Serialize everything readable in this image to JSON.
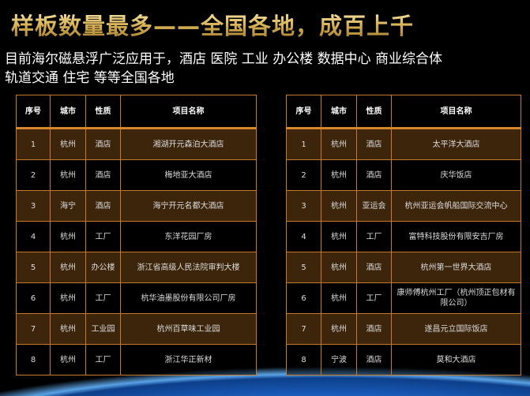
{
  "title": "样板数量最多——全国各地，成百上千",
  "subtitle": [
    "目前海尔磁悬浮广泛应用于，酒店  医院 工业 办公楼 数据中心  商业综合体",
    "轨道交通 住宅 等等全国各地"
  ],
  "headers": [
    "序号",
    "城市",
    "性质",
    "项目名称"
  ],
  "left_table": [
    [
      "1",
      "杭州",
      "酒店",
      "湘湖开元森泊大酒店"
    ],
    [
      "2",
      "杭州",
      "酒店",
      "梅地亚大酒店"
    ],
    [
      "3",
      "海宁",
      "酒店",
      "海宁开元名都大酒店"
    ],
    [
      "4",
      "杭州",
      "工厂",
      "东洋花园厂房"
    ],
    [
      "5",
      "杭州",
      "办公楼",
      "浙江省高级人民法院审判大楼"
    ],
    [
      "6",
      "杭州",
      "工厂",
      "杭华油墨股份有限公司厂房"
    ],
    [
      "7",
      "杭州",
      "工业园",
      "杭州百草味工业园"
    ],
    [
      "8",
      "杭州",
      "工厂",
      "浙江华正新材"
    ]
  ],
  "right_table": [
    [
      "1",
      "杭州",
      "酒店",
      "太平洋大酒店"
    ],
    [
      "2",
      "杭州",
      "酒店",
      "庆华饭店"
    ],
    [
      "3",
      "杭州",
      "亚运会",
      "杭州亚运会帆船国际交流中心"
    ],
    [
      "4",
      "杭州",
      "工厂",
      "富特科技股份有限安吉厂房"
    ],
    [
      "5",
      "杭州",
      "酒店",
      "杭州第一世界大酒店"
    ],
    [
      "6",
      "杭州",
      "工厂",
      "康师傅杭州工厂（杭州顶正包材有限公司）"
    ],
    [
      "7",
      "杭州",
      "酒店",
      "遂昌元立国际饭店"
    ],
    [
      "8",
      "宁波",
      "酒店",
      "莫和大酒店"
    ]
  ],
  "colors": {
    "border": "#c77a2c",
    "row_odd": "#462a0e",
    "title_gold": "#d8b35a"
  }
}
